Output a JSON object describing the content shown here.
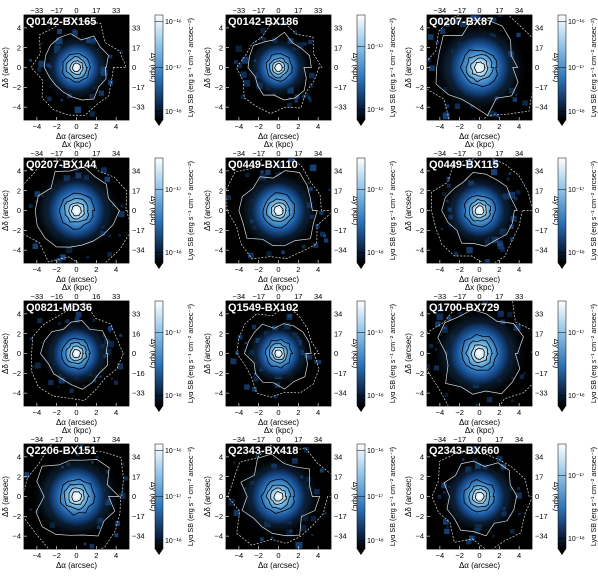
{
  "figure": {
    "axes": {
      "x_bottom_label": "Δα (arcsec)",
      "y_left_label": "Δδ (arcsec)",
      "x_top_label": "Δx (kpc)",
      "y_right_label": "Δy (kpc)",
      "colorbar_label": "Lyα SB (erg s⁻¹ cm⁻² arcsec⁻²)",
      "x_bottom_ticks": [
        -4,
        -2,
        0,
        2,
        4
      ],
      "y_left_ticks": [
        4,
        2,
        0,
        -2,
        -4
      ],
      "x_range_arcsec": [
        -5.3,
        5.3
      ],
      "y_range_arcsec": [
        -5.3,
        5.3
      ]
    },
    "colors": {
      "map_background": "#000000",
      "map_mid": "#1f5fa8",
      "map_peak": "#ffffff",
      "contour_inner": "#000000",
      "contour_outer": "#ffffff"
    },
    "panels": [
      {
        "name": "Q0142-BX165",
        "top_ticks": [
          "−33",
          "−17",
          "0",
          "17",
          "33"
        ],
        "right_ticks": [
          "33",
          "17",
          "0",
          "−17",
          "−33"
        ],
        "colorbar_ticks": [
          "10⁻¹⁶",
          "10⁻¹⁷",
          "10⁻¹⁸"
        ]
      },
      {
        "name": "Q0142-BX186",
        "top_ticks": [
          "−33",
          "−17",
          "0",
          "17",
          "33"
        ],
        "right_ticks": [
          "33",
          "17",
          "0",
          "−17",
          "−33"
        ],
        "colorbar_ticks": [
          "10⁻¹⁷",
          "10⁻¹⁸"
        ]
      },
      {
        "name": "Q0207-BX87",
        "top_ticks": [
          "−34",
          "−17",
          "0",
          "17",
          "34"
        ],
        "right_ticks": [
          "34",
          "17",
          "0",
          "−17",
          "−34"
        ],
        "colorbar_ticks": [
          "10⁻¹⁶",
          "10⁻¹⁷",
          "10⁻¹⁸"
        ]
      },
      {
        "name": "Q0207-BX144",
        "top_ticks": [
          "−34",
          "−17",
          "0",
          "17",
          "34"
        ],
        "right_ticks": [
          "34",
          "17",
          "0",
          "−17",
          "−34"
        ],
        "colorbar_ticks": [
          "10⁻¹⁷",
          "10⁻¹⁸"
        ]
      },
      {
        "name": "Q0449-BX110",
        "top_ticks": [
          "−34",
          "−17",
          "0",
          "17",
          "34"
        ],
        "right_ticks": [
          "34",
          "17",
          "0",
          "−17",
          "−34"
        ],
        "colorbar_ticks": [
          "10⁻¹⁷",
          "10⁻¹⁸"
        ]
      },
      {
        "name": "Q0449-BX115",
        "top_ticks": [
          "−34",
          "−17",
          "0",
          "17",
          "34"
        ],
        "right_ticks": [
          "34",
          "17",
          "0",
          "−17",
          "−34"
        ],
        "colorbar_ticks": [
          "10⁻¹⁷",
          "10⁻¹⁸"
        ]
      },
      {
        "name": "Q0821-MD36",
        "top_ticks": [
          "−33",
          "−16",
          "0",
          "16",
          "33"
        ],
        "right_ticks": [
          "33",
          "16",
          "0",
          "−16",
          "−33"
        ],
        "colorbar_ticks": [
          "10⁻¹⁷",
          "10⁻¹⁸"
        ]
      },
      {
        "name": "Q1549-BX102",
        "top_ticks": [
          "−34",
          "−17",
          "0",
          "17",
          "34"
        ],
        "right_ticks": [
          "34",
          "17",
          "0",
          "−17",
          "−34"
        ],
        "colorbar_ticks": [
          "10⁻¹⁷",
          "10⁻¹⁸"
        ]
      },
      {
        "name": "Q1700-BX729",
        "top_ticks": [
          "−33",
          "−17",
          "0",
          "17",
          "33"
        ],
        "right_ticks": [
          "33",
          "17",
          "0",
          "−17",
          "−33"
        ],
        "colorbar_ticks": [
          "10⁻¹⁷",
          "10⁻¹⁸"
        ]
      },
      {
        "name": "Q2206-BX151",
        "top_ticks": [
          "−34",
          "−17",
          "0",
          "17",
          "34"
        ],
        "right_ticks": [
          "34",
          "17",
          "0",
          "−17",
          "−34"
        ],
        "colorbar_ticks": [
          "10⁻¹⁶",
          "10⁻¹⁷",
          "10⁻¹⁸"
        ]
      },
      {
        "name": "Q2343-BX418",
        "top_ticks": [
          "−34",
          "−17",
          "0",
          "17",
          "34"
        ],
        "right_ticks": [
          "34",
          "17",
          "0",
          "−17",
          "−34"
        ],
        "colorbar_ticks": [
          "10⁻¹⁶",
          "10⁻¹⁷",
          "10⁻¹⁸"
        ]
      },
      {
        "name": "Q2343-BX660",
        "top_ticks": [
          "−34",
          "−17",
          "0",
          "17",
          "34"
        ],
        "right_ticks": [
          "34",
          "17",
          "0",
          "−17",
          "−34"
        ],
        "colorbar_ticks": [
          "10⁻¹⁷",
          "10⁻¹⁸"
        ]
      }
    ]
  }
}
